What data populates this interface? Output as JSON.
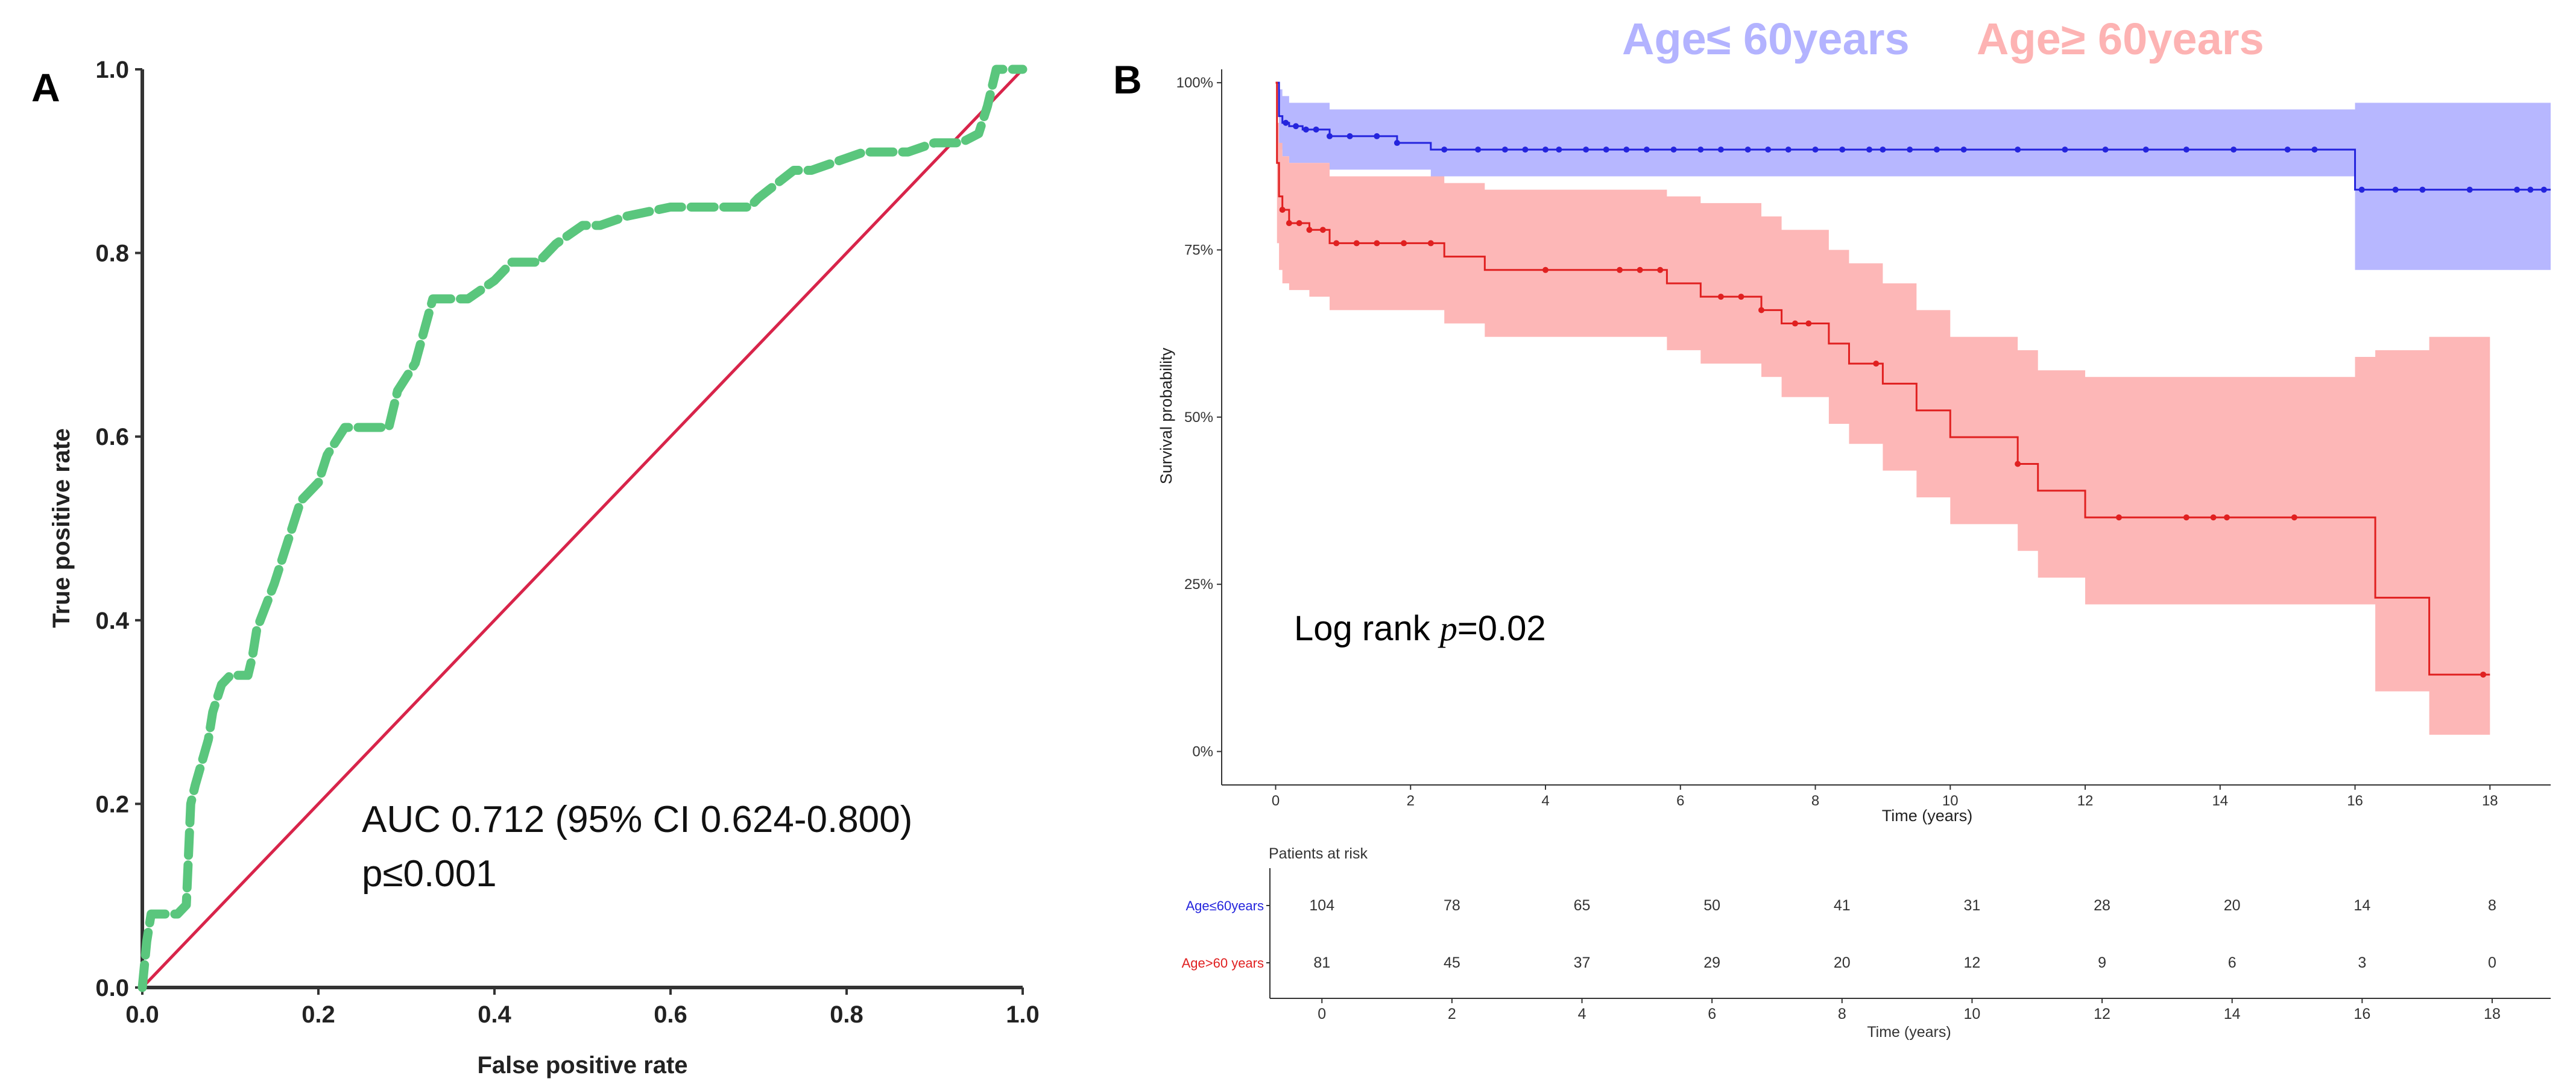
{
  "figure": {
    "panel_a_letter": "A",
    "panel_b_letter": "B"
  },
  "chart_data": [
    {
      "type": "line",
      "panel": "A",
      "title": "",
      "xlabel": "False positive rate",
      "ylabel": "True positive rate",
      "xlim": [
        0,
        1
      ],
      "ylim": [
        0,
        1
      ],
      "x_ticks": [
        "0.0",
        "0.2",
        "0.4",
        "0.6",
        "0.8",
        "1.0"
      ],
      "y_ticks": [
        "0.0",
        "0.2",
        "0.4",
        "0.6",
        "0.8",
        "1.0"
      ],
      "grid": false,
      "annotations": [
        "AUC 0.712 (95% CI 0.624-0.800)",
        "p≤0.001"
      ],
      "series": [
        {
          "name": "ROC curve",
          "color": "#5ac67d",
          "style": "dashed",
          "x": [
            0,
            0.005,
            0.01,
            0.04,
            0.05,
            0.055,
            0.06,
            0.075,
            0.08,
            0.09,
            0.1,
            0.12,
            0.125,
            0.13,
            0.15,
            0.17,
            0.18,
            0.2,
            0.21,
            0.23,
            0.24,
            0.28,
            0.29,
            0.31,
            0.33,
            0.34,
            0.37,
            0.4,
            0.42,
            0.45,
            0.47,
            0.5,
            0.52,
            0.55,
            0.6,
            0.62,
            0.65,
            0.69,
            0.7,
            0.74,
            0.76,
            0.79,
            0.82,
            0.85,
            0.87,
            0.9,
            0.93,
            0.95,
            0.96,
            0.97,
            1.0
          ],
          "y": [
            0,
            0.05,
            0.08,
            0.08,
            0.09,
            0.2,
            0.22,
            0.27,
            0.3,
            0.33,
            0.34,
            0.34,
            0.36,
            0.39,
            0.44,
            0.5,
            0.53,
            0.55,
            0.58,
            0.61,
            0.61,
            0.61,
            0.65,
            0.68,
            0.75,
            0.75,
            0.75,
            0.77,
            0.79,
            0.79,
            0.81,
            0.83,
            0.83,
            0.84,
            0.85,
            0.85,
            0.85,
            0.85,
            0.86,
            0.89,
            0.89,
            0.9,
            0.91,
            0.91,
            0.91,
            0.92,
            0.92,
            0.93,
            0.96,
            1.0,
            1.0
          ]
        },
        {
          "name": "Reference",
          "color": "#d8244a",
          "style": "solid",
          "x": [
            0,
            1
          ],
          "y": [
            0,
            1
          ]
        }
      ]
    },
    {
      "type": "line",
      "panel": "B",
      "title": "",
      "xlabel": "Time (years)",
      "ylabel": "Survival probability",
      "xlim": [
        -0.8,
        18.9
      ],
      "ylim": [
        -0.05,
        1.02
      ],
      "x_ticks": [
        0,
        2,
        4,
        6,
        8,
        10,
        12,
        14,
        16,
        18
      ],
      "y_ticks": [
        "0%",
        "25%",
        "50%",
        "75%",
        "100%"
      ],
      "y_tick_values": [
        0,
        0.25,
        0.5,
        0.75,
        1.0
      ],
      "grid": false,
      "legend": [
        "Age≤ 60years",
        "Age≥ 60years"
      ],
      "legend_position": "top",
      "annotation": {
        "prefix": "Log rank ",
        "p": "p",
        "suffix": "=0.02"
      },
      "series": [
        {
          "name": "Age≤ 60years",
          "color": "#2424dd",
          "band_color": "#b3b3ff",
          "t": [
            0,
            0.05,
            0.1,
            0.2,
            0.4,
            0.8,
            1.8,
            2.3,
            16,
            18.9
          ],
          "s": [
            1.0,
            0.95,
            0.94,
            0.935,
            0.93,
            0.92,
            0.91,
            0.9,
            0.84,
            0.84
          ],
          "lo": [
            1.0,
            0.9,
            0.89,
            0.88,
            0.88,
            0.87,
            0.87,
            0.86,
            0.72,
            0.72
          ],
          "hi": [
            1.0,
            0.99,
            0.98,
            0.97,
            0.97,
            0.96,
            0.96,
            0.96,
            0.97,
            0.97
          ],
          "censor": [
            0.15,
            0.3,
            0.45,
            0.6,
            0.8,
            1.1,
            1.5,
            1.8,
            2.5,
            3.0,
            3.4,
            3.7,
            4.0,
            4.2,
            4.6,
            4.9,
            5.2,
            5.5,
            5.9,
            6.3,
            6.6,
            7.0,
            7.3,
            7.6,
            8.0,
            8.4,
            8.8,
            9.0,
            9.4,
            9.8,
            10.2,
            11.0,
            11.7,
            12.3,
            12.9,
            13.5,
            14.2,
            15.0,
            15.4,
            16.1,
            16.6,
            17.0,
            17.7,
            18.4,
            18.6,
            18.8
          ]
        },
        {
          "name": "Age≥ 60years",
          "color": "#e02020",
          "band_color": "#fdb3b3",
          "t": [
            0,
            0.02,
            0.05,
            0.1,
            0.2,
            0.5,
            0.8,
            2.5,
            3.1,
            5.8,
            6.3,
            7.2,
            7.5,
            8.2,
            8.5,
            9.0,
            9.5,
            10.0,
            11.0,
            11.3,
            12.0,
            12.5,
            16.0,
            16.3,
            17.1,
            18.0
          ],
          "s": [
            1.0,
            0.88,
            0.83,
            0.81,
            0.79,
            0.78,
            0.76,
            0.74,
            0.72,
            0.7,
            0.68,
            0.66,
            0.64,
            0.61,
            0.58,
            0.55,
            0.51,
            0.47,
            0.43,
            0.39,
            0.35,
            0.35,
            0.35,
            0.23,
            0.115,
            0.115
          ],
          "lo": [
            1.0,
            0.76,
            0.72,
            0.7,
            0.69,
            0.68,
            0.66,
            0.64,
            0.62,
            0.6,
            0.58,
            0.56,
            0.53,
            0.49,
            0.46,
            0.42,
            0.38,
            0.34,
            0.3,
            0.26,
            0.22,
            0.22,
            0.22,
            0.09,
            0.025,
            0.025
          ],
          "hi": [
            1.0,
            0.94,
            0.91,
            0.89,
            0.88,
            0.88,
            0.86,
            0.85,
            0.84,
            0.83,
            0.82,
            0.8,
            0.78,
            0.75,
            0.73,
            0.7,
            0.66,
            0.62,
            0.6,
            0.57,
            0.56,
            0.56,
            0.59,
            0.6,
            0.62,
            0.62
          ],
          "censor": [
            0.1,
            0.2,
            0.35,
            0.5,
            0.7,
            0.9,
            1.2,
            1.5,
            1.9,
            2.3,
            4.0,
            5.1,
            5.4,
            5.7,
            6.6,
            6.9,
            7.2,
            7.7,
            7.9,
            8.9,
            11.0,
            12.5,
            13.5,
            13.9,
            14.1,
            15.1,
            17.9
          ]
        }
      ],
      "risk_table": {
        "title": "Patients at risk",
        "xlabel": "Time (years)",
        "x_ticks": [
          0,
          2,
          4,
          6,
          8,
          10,
          12,
          14,
          16,
          18
        ],
        "rows": [
          {
            "label": "Age≤60years",
            "color": "#2424dd",
            "values": [
              104,
              78,
              65,
              50,
              41,
              31,
              28,
              20,
              14,
              8
            ]
          },
          {
            "label": "Age>60 years",
            "color": "#e02020",
            "values": [
              81,
              45,
              37,
              29,
              20,
              12,
              9,
              6,
              3,
              0
            ]
          }
        ]
      }
    }
  ]
}
